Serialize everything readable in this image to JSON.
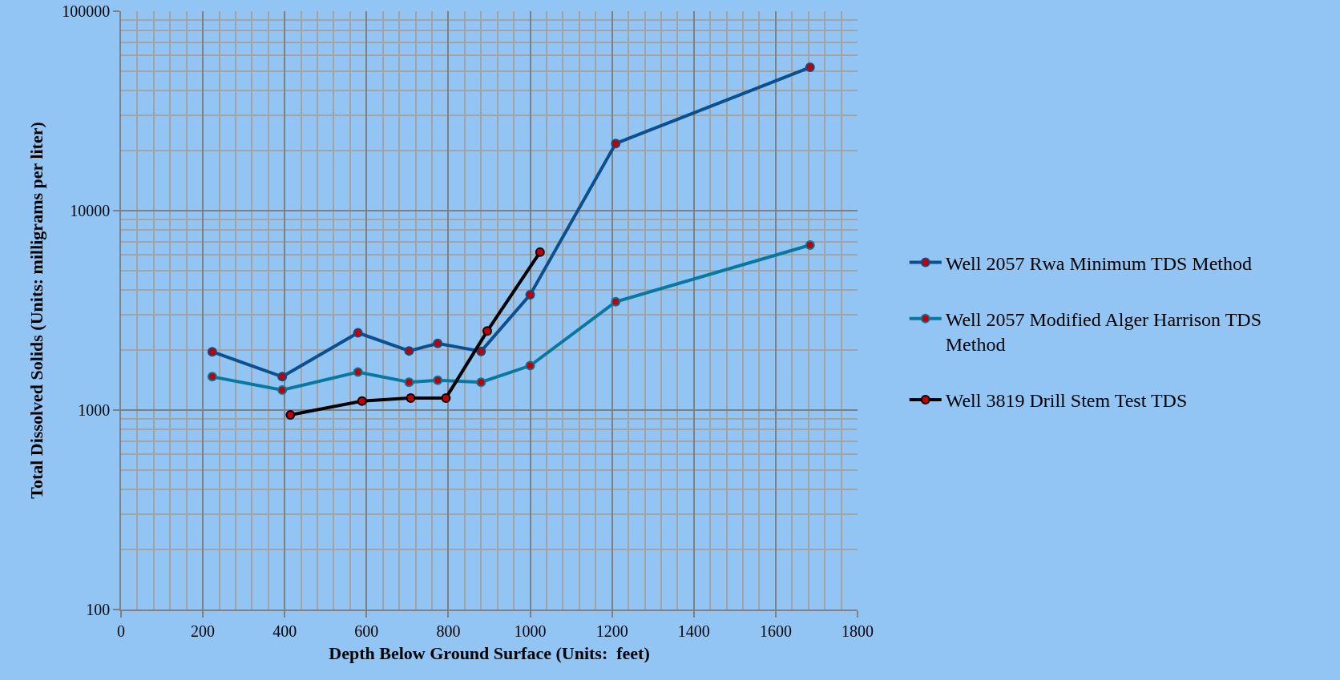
{
  "chart_data": {
    "type": "line",
    "xlabel": "Depth Below Ground Surface (Units:  feet)",
    "ylabel": "Total Dissolved Solids (Units: milligrams per liter)",
    "xlim": [
      0,
      1800
    ],
    "xticks": [
      0,
      200,
      400,
      600,
      800,
      1000,
      1200,
      1400,
      1600,
      1800
    ],
    "ylim": [
      100,
      100000
    ],
    "yticks": [
      100,
      1000,
      10000,
      100000
    ],
    "log": "y",
    "grid": true,
    "legend": "right",
    "marker": "circle",
    "line_style": "solid",
    "series": [
      {
        "name": "Well 2057 Rwa Minimum TDS Method",
        "color": "#0b4f8f",
        "x": [
          223,
          394,
          579,
          704,
          774,
          880,
          1000,
          1209,
          1684
        ],
        "values": [
          1960,
          1470,
          2440,
          1980,
          2160,
          1970,
          3790,
          21700,
          52300
        ]
      },
      {
        "name": "Well 2057 Modified Alger Harrison TDS Method",
        "color": "#0778a0",
        "x": [
          223,
          394,
          579,
          704,
          774,
          880,
          1000,
          1209,
          1684
        ],
        "values": [
          1470,
          1260,
          1550,
          1380,
          1410,
          1380,
          1670,
          3490,
          6720
        ]
      },
      {
        "name": "Well 3819 Drill Stem Test TDS",
        "color": "#000000",
        "x": [
          414,
          589,
          708,
          794,
          895,
          1024
        ],
        "values": [
          946,
          1110,
          1150,
          1150,
          2490,
          6190
        ]
      }
    ]
  }
}
